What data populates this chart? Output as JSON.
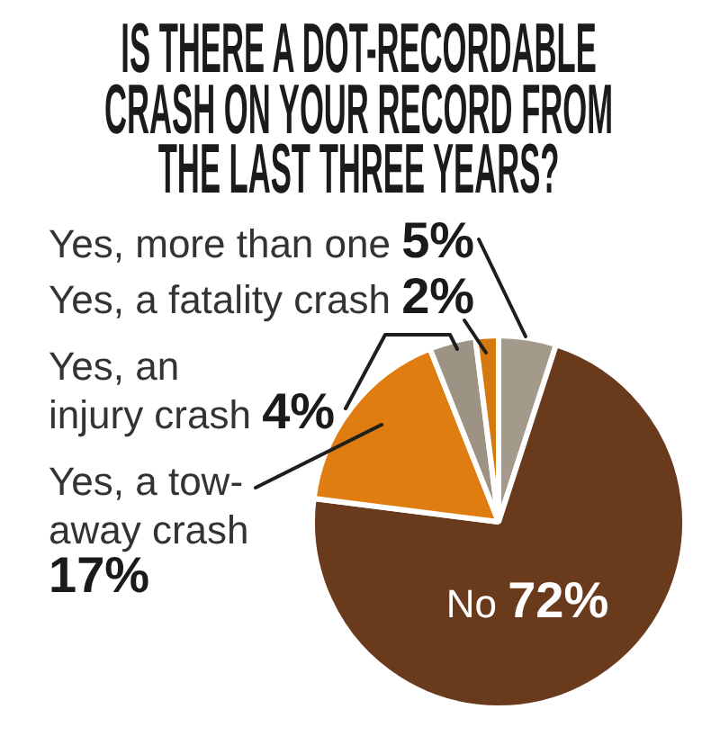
{
  "chart_data": {
    "type": "pie",
    "title": "IS THERE A DOT-RECORDABLE CRASH ON YOUR RECORD FROM THE LAST THREE YEARS?",
    "categories": [
      "Yes, more than one",
      "No",
      "Yes, a tow-away crash",
      "Yes, an injury crash",
      "Yes, a fatality crash"
    ],
    "values": [
      5,
      72,
      17,
      4,
      2
    ],
    "value_labels": [
      "5%",
      "72%",
      "17%",
      "4%",
      "2%"
    ],
    "colors": [
      "#a39a8c",
      "#6a3a1c",
      "#e07d10",
      "#9d9384",
      "#d5780f"
    ]
  }
}
